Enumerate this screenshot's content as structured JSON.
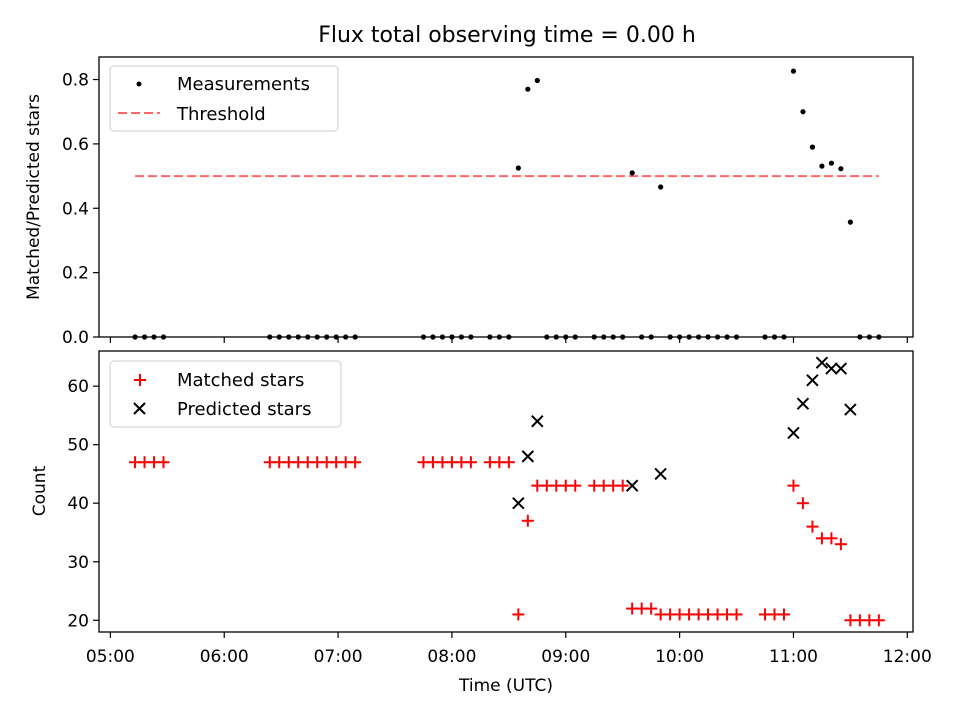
{
  "title": "Flux total observing time = 0.00 h",
  "xlabel": "Time (UTC)",
  "colors": {
    "measurements": "#000000",
    "threshold": "#ff6666",
    "matched": "#ff0000",
    "predicted": "#000000"
  },
  "chart_data": [
    {
      "type": "scatter",
      "ylabel": "Matched/Predicted stars",
      "ylim": [
        0,
        0.87
      ],
      "yticks": [
        "0.0",
        "0.2",
        "0.4",
        "0.6",
        "0.8"
      ],
      "xlim": [
        "04:54",
        "12:03"
      ],
      "grid": false,
      "legend_position": "upper left",
      "legend": [
        "Measurements",
        "Threshold"
      ],
      "threshold": {
        "value": 0.5,
        "x_range": [
          "05:13",
          "11:45"
        ]
      },
      "series": [
        {
          "name": "Measurements",
          "marker": "dot",
          "points": [
            [
              "05:13",
              0
            ],
            [
              "05:18",
              0
            ],
            [
              "05:23",
              0
            ],
            [
              "05:28",
              0
            ],
            [
              "06:24",
              0
            ],
            [
              "06:29",
              0
            ],
            [
              "06:34",
              0
            ],
            [
              "06:39",
              0
            ],
            [
              "06:44",
              0
            ],
            [
              "06:49",
              0
            ],
            [
              "06:54",
              0
            ],
            [
              "06:59",
              0
            ],
            [
              "07:04",
              0
            ],
            [
              "07:09",
              0
            ],
            [
              "07:45",
              0
            ],
            [
              "07:50",
              0
            ],
            [
              "07:55",
              0
            ],
            [
              "08:00",
              0
            ],
            [
              "08:05",
              0
            ],
            [
              "08:10",
              0
            ],
            [
              "08:20",
              0
            ],
            [
              "08:25",
              0
            ],
            [
              "08:30",
              0
            ],
            [
              "08:35",
              0.525
            ],
            [
              "08:40",
              0.77
            ],
            [
              "08:45",
              0.797
            ],
            [
              "08:50",
              0
            ],
            [
              "08:55",
              0
            ],
            [
              "09:00",
              0
            ],
            [
              "09:05",
              0
            ],
            [
              "09:15",
              0
            ],
            [
              "09:20",
              0
            ],
            [
              "09:25",
              0
            ],
            [
              "09:30",
              0
            ],
            [
              "09:35",
              0.51
            ],
            [
              "09:40",
              0
            ],
            [
              "09:45",
              0
            ],
            [
              "09:50",
              0.466
            ],
            [
              "09:55",
              0
            ],
            [
              "10:00",
              0
            ],
            [
              "10:05",
              0
            ],
            [
              "10:10",
              0
            ],
            [
              "10:15",
              0
            ],
            [
              "10:20",
              0
            ],
            [
              "10:25",
              0
            ],
            [
              "10:30",
              0
            ],
            [
              "10:45",
              0
            ],
            [
              "10:50",
              0
            ],
            [
              "10:55",
              0
            ],
            [
              "11:00",
              0.826
            ],
            [
              "11:05",
              0.7
            ],
            [
              "11:10",
              0.59
            ],
            [
              "11:15",
              0.531
            ],
            [
              "11:20",
              0.54
            ],
            [
              "11:25",
              0.523
            ],
            [
              "11:30",
              0.357
            ],
            [
              "11:35",
              0
            ],
            [
              "11:40",
              0
            ],
            [
              "11:45",
              0
            ]
          ]
        }
      ]
    },
    {
      "type": "scatter",
      "ylabel": "Count",
      "ylim": [
        18,
        66
      ],
      "yticks": [
        "20",
        "30",
        "40",
        "50",
        "60"
      ],
      "xlim": [
        "04:54",
        "12:03"
      ],
      "xticks": [
        "05:00",
        "06:00",
        "07:00",
        "08:00",
        "09:00",
        "10:00",
        "11:00",
        "12:00"
      ],
      "grid": false,
      "legend_position": "upper left",
      "legend": [
        "Matched stars",
        "Predicted stars"
      ],
      "series": [
        {
          "name": "Matched stars",
          "marker": "plus",
          "points": [
            [
              "05:13",
              47
            ],
            [
              "05:18",
              47
            ],
            [
              "05:23",
              47
            ],
            [
              "05:28",
              47
            ],
            [
              "06:24",
              47
            ],
            [
              "06:29",
              47
            ],
            [
              "06:34",
              47
            ],
            [
              "06:39",
              47
            ],
            [
              "06:44",
              47
            ],
            [
              "06:49",
              47
            ],
            [
              "06:54",
              47
            ],
            [
              "06:59",
              47
            ],
            [
              "07:04",
              47
            ],
            [
              "07:09",
              47
            ],
            [
              "07:45",
              47
            ],
            [
              "07:50",
              47
            ],
            [
              "07:55",
              47
            ],
            [
              "08:00",
              47
            ],
            [
              "08:05",
              47
            ],
            [
              "08:10",
              47
            ],
            [
              "08:20",
              47
            ],
            [
              "08:25",
              47
            ],
            [
              "08:30",
              47
            ],
            [
              "08:35",
              21
            ],
            [
              "08:40",
              37
            ],
            [
              "08:45",
              43
            ],
            [
              "08:50",
              43
            ],
            [
              "08:55",
              43
            ],
            [
              "09:00",
              43
            ],
            [
              "09:05",
              43
            ],
            [
              "09:15",
              43
            ],
            [
              "09:20",
              43
            ],
            [
              "09:25",
              43
            ],
            [
              "09:30",
              43
            ],
            [
              "09:35",
              22
            ],
            [
              "09:40",
              22
            ],
            [
              "09:45",
              22
            ],
            [
              "09:50",
              21
            ],
            [
              "09:55",
              21
            ],
            [
              "10:00",
              21
            ],
            [
              "10:05",
              21
            ],
            [
              "10:10",
              21
            ],
            [
              "10:15",
              21
            ],
            [
              "10:20",
              21
            ],
            [
              "10:25",
              21
            ],
            [
              "10:30",
              21
            ],
            [
              "10:45",
              21
            ],
            [
              "10:50",
              21
            ],
            [
              "10:55",
              21
            ],
            [
              "11:00",
              43
            ],
            [
              "11:05",
              40
            ],
            [
              "11:10",
              36
            ],
            [
              "11:15",
              34
            ],
            [
              "11:20",
              34
            ],
            [
              "11:25",
              33
            ],
            [
              "11:30",
              20
            ],
            [
              "11:35",
              20
            ],
            [
              "11:40",
              20
            ],
            [
              "11:45",
              20
            ]
          ]
        },
        {
          "name": "Predicted stars",
          "marker": "x",
          "points": [
            [
              "08:35",
              40
            ],
            [
              "08:40",
              48
            ],
            [
              "08:45",
              54
            ],
            [
              "09:35",
              43
            ],
            [
              "09:50",
              45
            ],
            [
              "11:00",
              52
            ],
            [
              "11:05",
              57
            ],
            [
              "11:10",
              61
            ],
            [
              "11:15",
              64
            ],
            [
              "11:20",
              63
            ],
            [
              "11:25",
              63
            ],
            [
              "11:30",
              56
            ]
          ]
        }
      ]
    }
  ]
}
